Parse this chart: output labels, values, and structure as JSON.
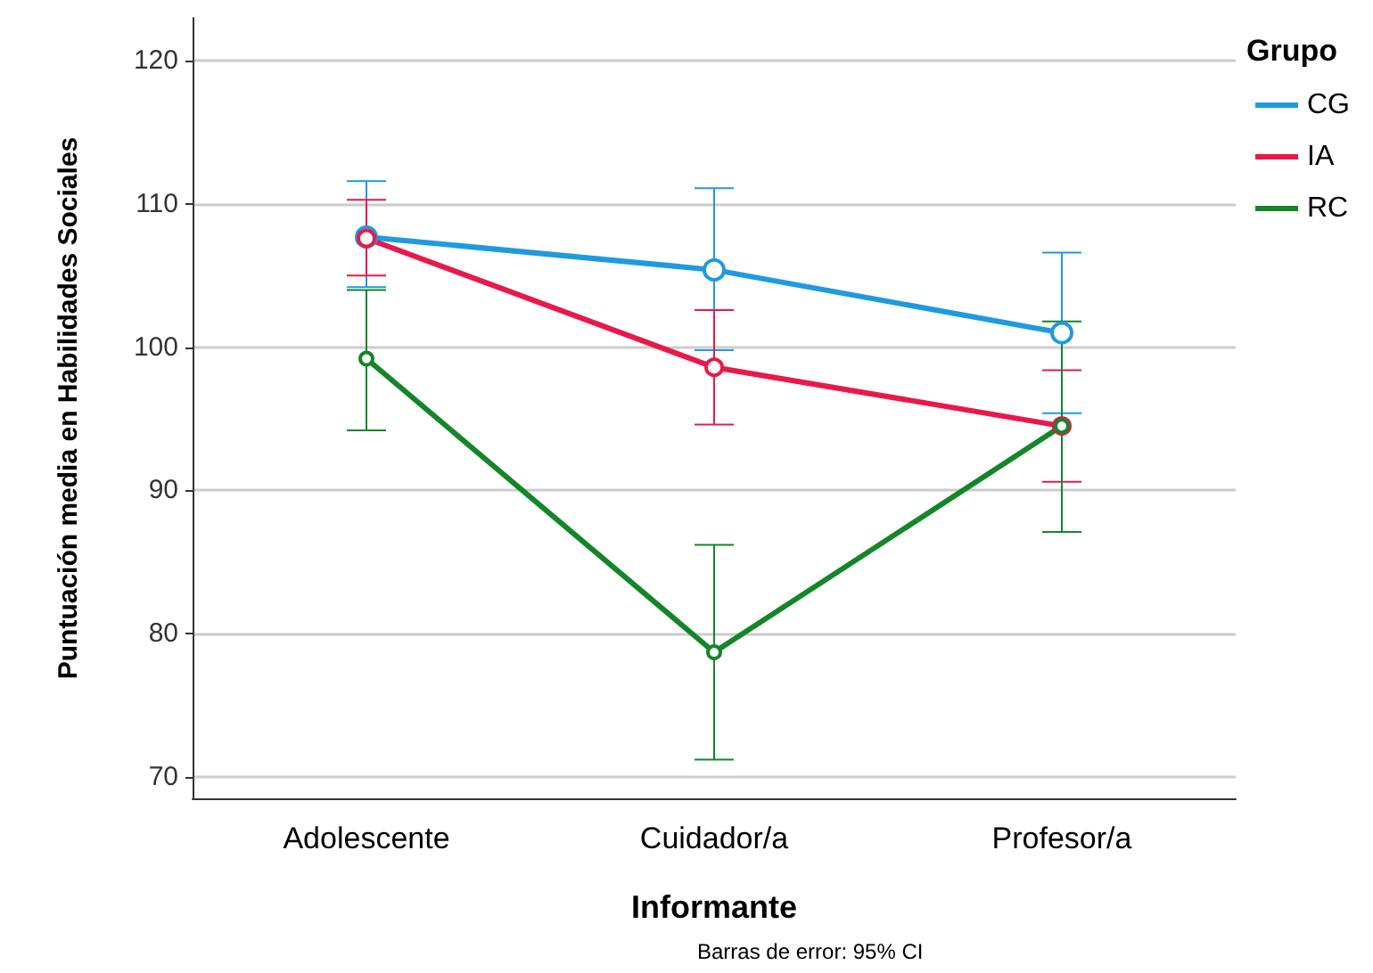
{
  "chart_data": {
    "type": "line",
    "xlabel": "Informante",
    "ylabel": "Puntuación media en Habilidades Sociales",
    "legend_title": "Grupo",
    "annotations": [
      "Barras de error: 95% CI"
    ],
    "categories": [
      "Adolescente",
      "Cuidador/a",
      "Profesor/a"
    ],
    "series": [
      {
        "name": "CG",
        "color": "#1f9ae0",
        "values": [
          107.7,
          105.4,
          101.0
        ],
        "errors": [
          [
            104.2,
            111.6
          ],
          [
            99.8,
            111.1
          ],
          [
            95.4,
            106.6
          ]
        ]
      },
      {
        "name": "IA",
        "color": "#e8194a",
        "values": [
          107.6,
          98.6,
          94.5
        ],
        "errors": [
          [
            105.0,
            110.3
          ],
          [
            94.6,
            102.6
          ],
          [
            90.6,
            98.4
          ]
        ]
      },
      {
        "name": "RC",
        "color": "#14862a",
        "values": [
          99.2,
          78.7,
          94.5
        ],
        "errors": [
          [
            94.2,
            104.0
          ],
          [
            71.2,
            86.2
          ],
          [
            87.1,
            101.8
          ]
        ]
      }
    ],
    "ylim": [
      68.5,
      123
    ],
    "yticks": [
      70,
      80,
      90,
      100,
      110,
      120
    ],
    "grid": "y",
    "legend": "top right",
    "marker": "circle",
    "line_style": "solid"
  }
}
